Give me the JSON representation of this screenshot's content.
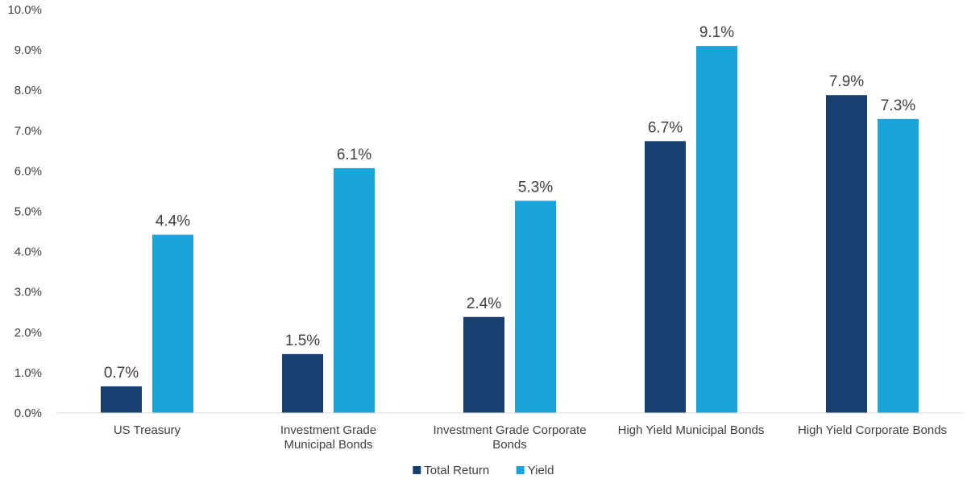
{
  "chart_data": {
    "type": "bar",
    "title": "",
    "xlabel": "",
    "ylabel": "",
    "ylim": [
      0,
      10
    ],
    "y_ticks": [
      "0.0%",
      "1.0%",
      "2.0%",
      "3.0%",
      "4.0%",
      "5.0%",
      "6.0%",
      "7.0%",
      "8.0%",
      "9.0%",
      "10.0%"
    ],
    "categories": [
      [
        "US Treasury"
      ],
      [
        "Investment Grade",
        "Municipal Bonds"
      ],
      [
        "Investment Grade Corporate",
        "Bonds"
      ],
      [
        "High Yield Municipal Bonds"
      ],
      [
        "High Yield Corporate Bonds"
      ]
    ],
    "series": [
      {
        "name": "Total Return",
        "color": "#173f6f",
        "values": [
          0.66,
          1.46,
          2.38,
          6.74,
          7.88
        ],
        "labels": [
          "0.7%",
          "1.5%",
          "2.4%",
          "6.7%",
          "7.9%"
        ]
      },
      {
        "name": "Yield",
        "color": "#1ba3dc",
        "values": [
          4.42,
          6.07,
          5.26,
          9.1,
          7.29
        ],
        "labels": [
          "4.4%",
          "6.1%",
          "5.3%",
          "9.1%",
          "7.3%"
        ]
      }
    ],
    "legend_position": "bottom-center",
    "grid": false
  }
}
